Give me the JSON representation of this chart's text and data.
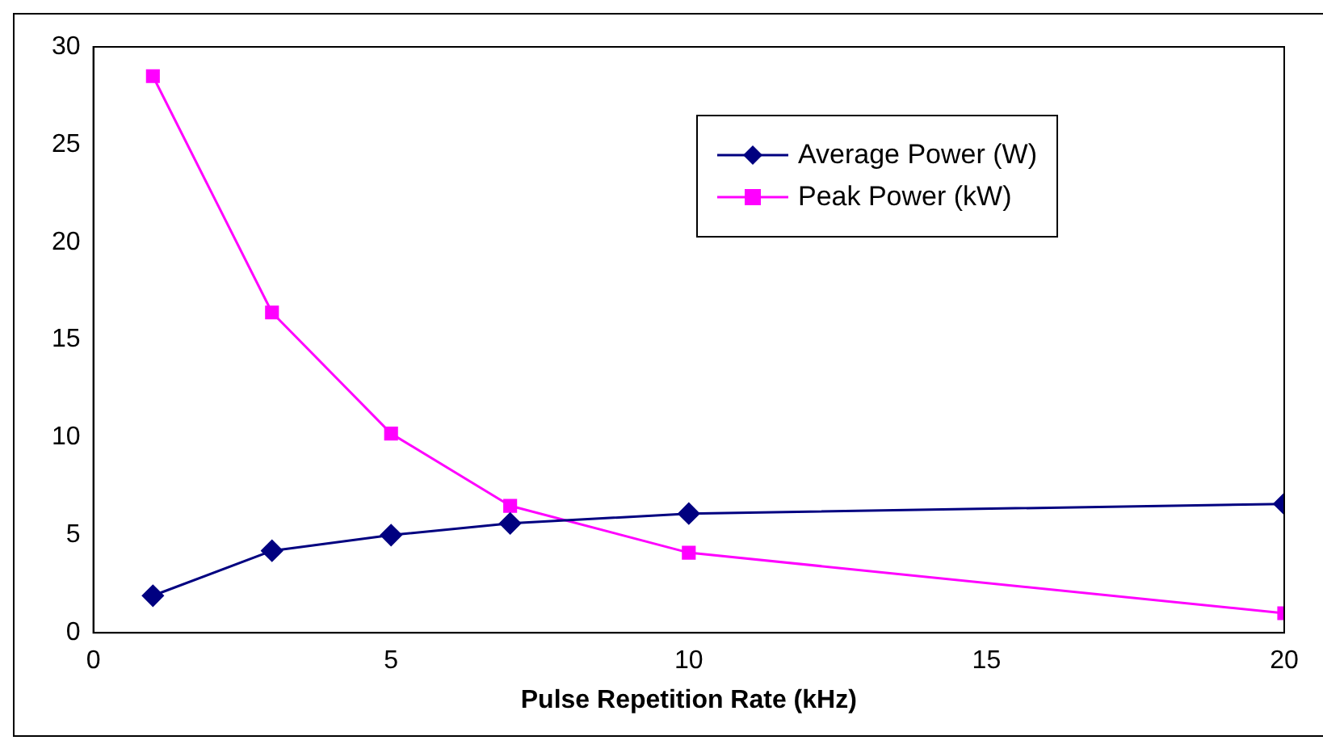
{
  "chart_data": {
    "type": "line",
    "xlabel": "Pulse Repetition Rate (kHz)",
    "x": [
      1,
      3,
      5,
      7,
      10,
      20
    ],
    "xlim": [
      0,
      20
    ],
    "xticks": [
      0,
      5,
      10,
      15,
      20
    ],
    "ylim": [
      0,
      30
    ],
    "yticks": [
      0,
      5,
      10,
      15,
      20,
      25,
      30
    ],
    "grid": false,
    "legend": "top right",
    "line_style": "solid",
    "series": [
      {
        "name": "Average Power (W)",
        "color": "#000080",
        "marker": "diamond",
        "values": [
          1.9,
          4.2,
          5.0,
          5.6,
          6.1,
          6.6
        ]
      },
      {
        "name": "Peak Power (kW)",
        "color": "#ff00ff",
        "marker": "square",
        "values": [
          28.5,
          16.4,
          10.2,
          6.5,
          4.1,
          1.0
        ]
      }
    ]
  }
}
